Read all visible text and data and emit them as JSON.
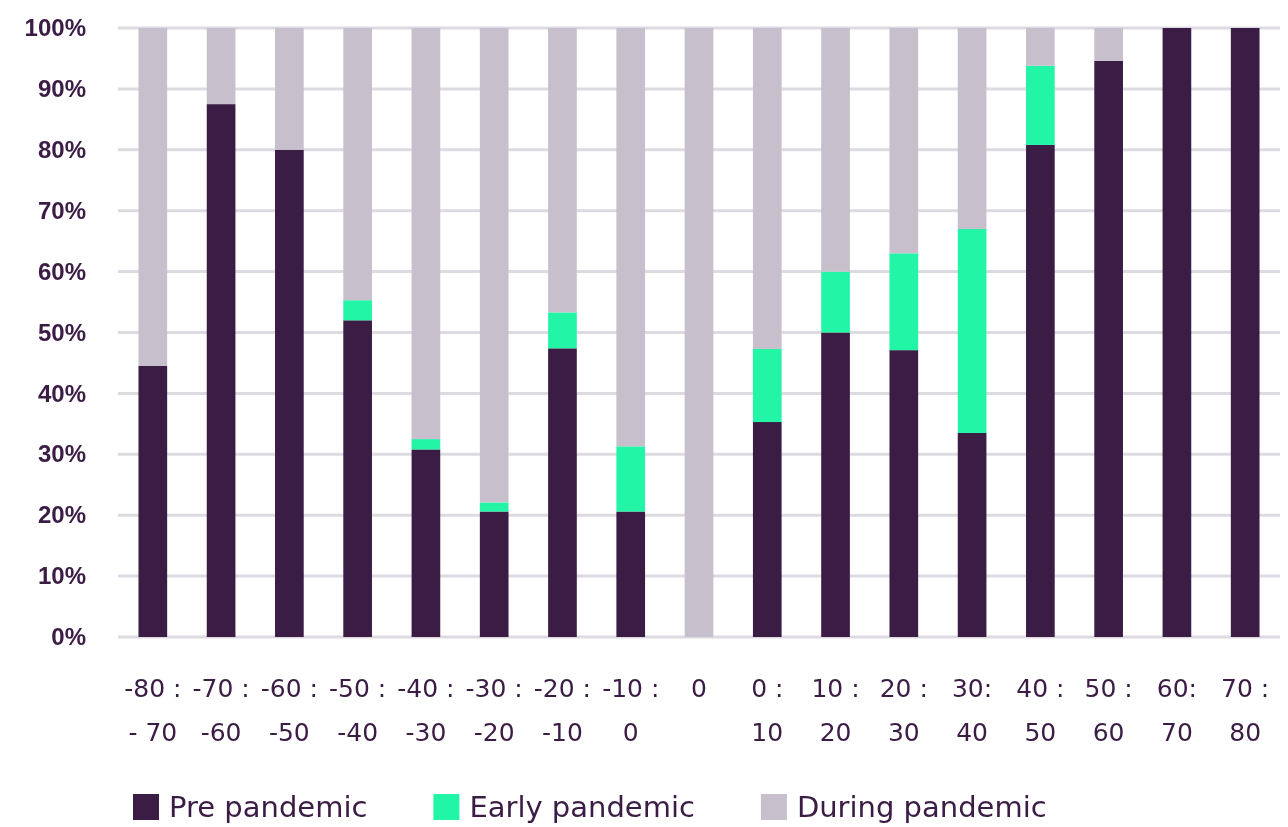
{
  "chart_data": {
    "type": "bar",
    "stacked": true,
    "categories": [
      "-80 : - 70",
      "-70 : -60",
      "-60 : -50",
      "-50 : -40",
      "-40 : -30",
      "-30 : -20",
      "-20 : -10",
      "-10 : 0",
      "0",
      "0 : 10",
      "10 : 20",
      "20 : 30",
      "30: 40",
      "40 : 50",
      "50 : 60",
      "60: 70",
      "70 : 80"
    ],
    "series": [
      {
        "name": "Pre pandemic",
        "color": "#3b1c45",
        "values": [
          44.5,
          87.5,
          80,
          52,
          30.8,
          20.6,
          47.4,
          20.6,
          0,
          35.3,
          50,
          47.1,
          33.5,
          80.8,
          94.6,
          100,
          100
        ]
      },
      {
        "name": "Early pandemic",
        "color": "#22f5a5",
        "values": [
          0,
          0,
          0,
          3.3,
          1.7,
          1.5,
          5.9,
          10.7,
          0,
          12,
          10,
          15.9,
          33.5,
          13,
          0,
          0,
          0
        ]
      },
      {
        "name": "During pandemic",
        "color": "#c7bfcc",
        "values": [
          55.5,
          12.5,
          20,
          44.7,
          67.5,
          77.9,
          46.7,
          68.7,
          100,
          52.7,
          40,
          37,
          33,
          6.2,
          5.4,
          0,
          0
        ]
      }
    ],
    "ylim": [
      0,
      100
    ],
    "yticks": [
      {
        "value": 0,
        "label": "0%"
      },
      {
        "value": 10,
        "label": "10%"
      },
      {
        "value": 20,
        "label": "20%"
      },
      {
        "value": 30,
        "label": "30%"
      },
      {
        "value": 40,
        "label": "40%"
      },
      {
        "value": 50,
        "label": "50%"
      },
      {
        "value": 60,
        "label": "60%"
      },
      {
        "value": 70,
        "label": "70%"
      },
      {
        "value": 80,
        "label": "80%"
      },
      {
        "value": 90,
        "label": "90%"
      },
      {
        "value": 100,
        "label": "100%"
      }
    ],
    "grid": "y",
    "legend": "bottom"
  }
}
